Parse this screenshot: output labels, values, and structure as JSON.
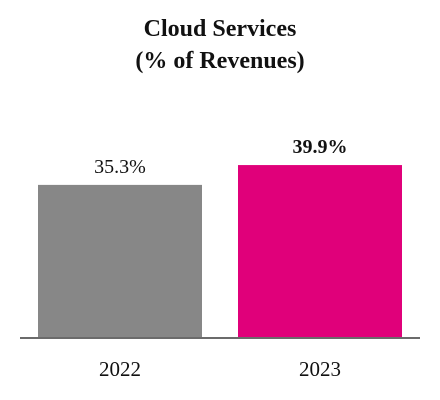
{
  "chart_data": {
    "type": "bar",
    "title": "Cloud Services",
    "subtitle": "(% of Revenues)",
    "categories": [
      "2022",
      "2023"
    ],
    "values": [
      35.3,
      39.9
    ],
    "value_labels": [
      "35.3%",
      "39.9%"
    ],
    "bar_colors": [
      "#878787",
      "#e0007a"
    ],
    "bold_value_labels": [
      false,
      true
    ],
    "ylim": [
      0,
      55
    ],
    "grid": false,
    "legend": "none"
  }
}
